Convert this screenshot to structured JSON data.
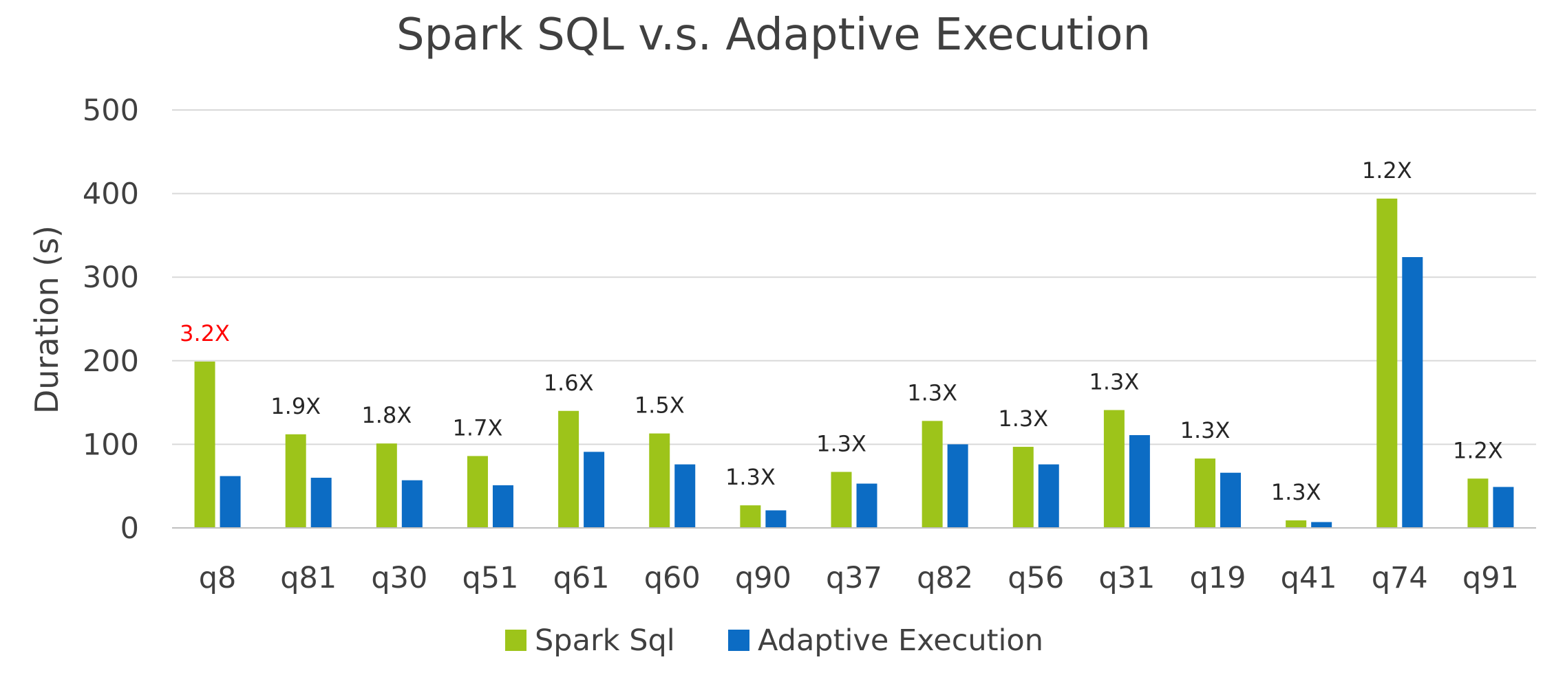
{
  "chart_data": {
    "type": "bar",
    "title": "Spark SQL v.s. Adaptive Execution",
    "xlabel": "",
    "ylabel": "Duration (s)",
    "ylim": [
      0,
      500
    ],
    "yticks": [
      0,
      100,
      200,
      300,
      400,
      500
    ],
    "grid": true,
    "legend_position": "bottom",
    "categories": [
      "q8",
      "q81",
      "q30",
      "q51",
      "q61",
      "q60",
      "q90",
      "q37",
      "q82",
      "q56",
      "q31",
      "q19",
      "q41",
      "q74",
      "q91"
    ],
    "series": [
      {
        "name": "Spark Sql",
        "color": "#9dc41a",
        "values": [
          199,
          112,
          101,
          86,
          140,
          113,
          27,
          67,
          128,
          97,
          141,
          83,
          9,
          394,
          59
        ]
      },
      {
        "name": "Adaptive Execution",
        "color": "#0c6cc4",
        "values": [
          62,
          60,
          57,
          51,
          91,
          76,
          21,
          53,
          100,
          76,
          111,
          66,
          7,
          324,
          49
        ]
      }
    ],
    "data_labels": [
      "3.2X",
      "1.9X",
      "1.8X",
      "1.7X",
      "1.6X",
      "1.5X",
      "1.3X",
      "1.3X",
      "1.3X",
      "1.3X",
      "1.3X",
      "1.3X",
      "1.3X",
      "1.2X",
      "1.2X"
    ],
    "data_label_colors": [
      "#ff0000",
      "#262626",
      "#262626",
      "#262626",
      "#262626",
      "#262626",
      "#262626",
      "#262626",
      "#262626",
      "#262626",
      "#262626",
      "#262626",
      "#262626",
      "#262626",
      "#262626"
    ]
  }
}
